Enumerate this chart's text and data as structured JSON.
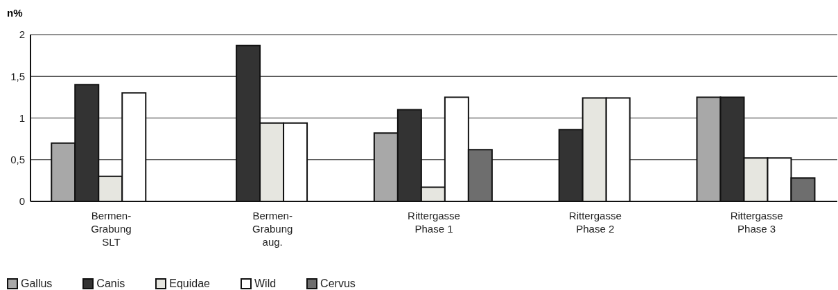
{
  "chart_data": {
    "type": "bar",
    "ylabel": "n%",
    "categories": [
      "Bermen-\nGrabung\nSLT",
      "Bermen-\nGrabung\naug.",
      "Rittergasse\nPhase 1",
      "Rittergasse\nPhase 2",
      "Rittergasse\nPhase 3"
    ],
    "series": [
      {
        "name": "Gallus",
        "color": "#a8a8a8",
        "values": [
          0.7,
          0,
          0.82,
          0,
          1.25
        ]
      },
      {
        "name": "Canis",
        "color": "#333333",
        "values": [
          1.4,
          1.87,
          1.1,
          0.86,
          1.25
        ]
      },
      {
        "name": "Equidae",
        "color": "#e6e6e0",
        "values": [
          0.3,
          0.94,
          0.17,
          1.24,
          0.52
        ]
      },
      {
        "name": "Wild",
        "color": "#ffffff",
        "values": [
          1.3,
          0.94,
          1.25,
          1.24,
          0.52
        ]
      },
      {
        "name": "Cervus",
        "color": "#6e6e6e",
        "values": [
          0,
          0,
          0.62,
          0,
          0.28
        ]
      }
    ],
    "ylim": [
      0,
      2
    ],
    "yticks": [
      0,
      {
        "value": 0.5,
        "label": "0,5"
      },
      1,
      {
        "value": 1.5,
        "label": "1,5"
      },
      2
    ],
    "grid": "y",
    "legend": "bottom left"
  }
}
